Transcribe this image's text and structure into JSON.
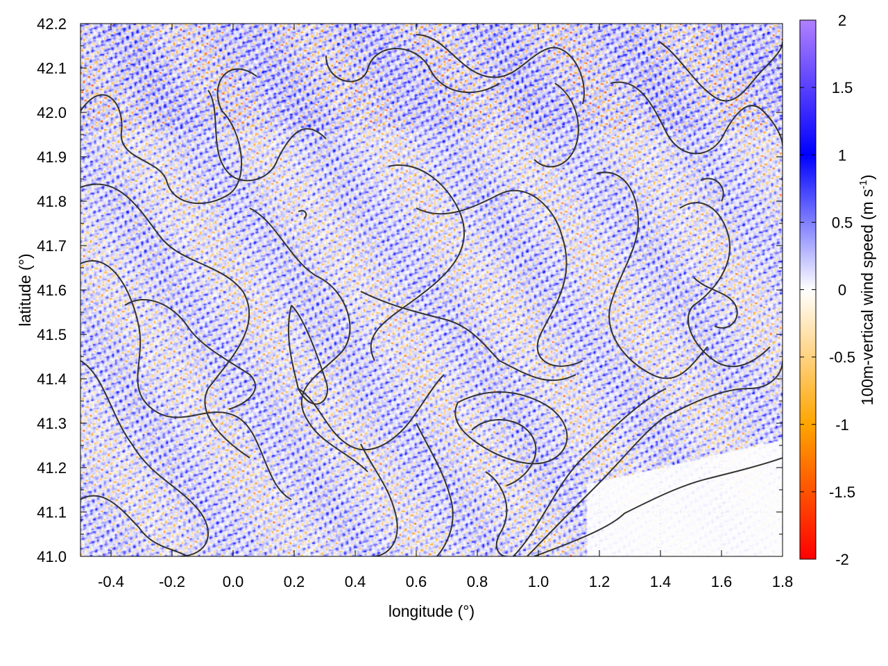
{
  "chart_data": {
    "type": "heatmap",
    "title": "",
    "xlabel": "longitude (°)",
    "ylabel": "latitude (°)",
    "colorbar_label": "100m-vertical wind speed (m s",
    "colorbar_label_exponent": "-1",
    "colorbar_label_suffix": ")",
    "xlim": [
      -0.5,
      1.8
    ],
    "ylim": [
      41.0,
      42.2
    ],
    "clim": [
      -2,
      2
    ],
    "x_ticks": [
      -0.4,
      -0.2,
      0.0,
      0.2,
      0.4,
      0.6,
      0.8,
      1.0,
      1.2,
      1.4,
      1.6,
      1.8
    ],
    "x_tick_labels": [
      "-0.4",
      "-0.2",
      "0.0",
      "0.2",
      "0.4",
      "0.6",
      "0.8",
      "1.0",
      "1.2",
      "1.4",
      "1.6",
      "1.8"
    ],
    "y_ticks": [
      41.0,
      41.1,
      41.2,
      41.3,
      41.4,
      41.5,
      41.6,
      41.7,
      41.8,
      41.9,
      42.0,
      42.1,
      42.2
    ],
    "y_tick_labels": [
      "41.0",
      "41.1",
      "41.2",
      "41.3",
      "41.4",
      "41.5",
      "41.6",
      "41.7",
      "41.8",
      "41.9",
      "42.0",
      "42.1",
      "42.2"
    ],
    "colorbar_ticks": [
      -2,
      -1.5,
      -1,
      -0.5,
      0,
      0.5,
      1,
      1.5,
      2
    ],
    "colorbar_tick_labels": [
      "-2",
      "-1.5",
      "-1",
      "-0.5",
      "0",
      "0.5",
      "1",
      "1.5",
      "2"
    ],
    "colormap": [
      {
        "value": -2,
        "color": "#ff0000"
      },
      {
        "value": -1,
        "color": "#ffa500"
      },
      {
        "value": 0,
        "color": "#ffffff"
      },
      {
        "value": 1,
        "color": "#0000ff"
      },
      {
        "value": 2,
        "color": "#b080ff"
      }
    ],
    "grid": true,
    "contour_color": "#333333"
  }
}
